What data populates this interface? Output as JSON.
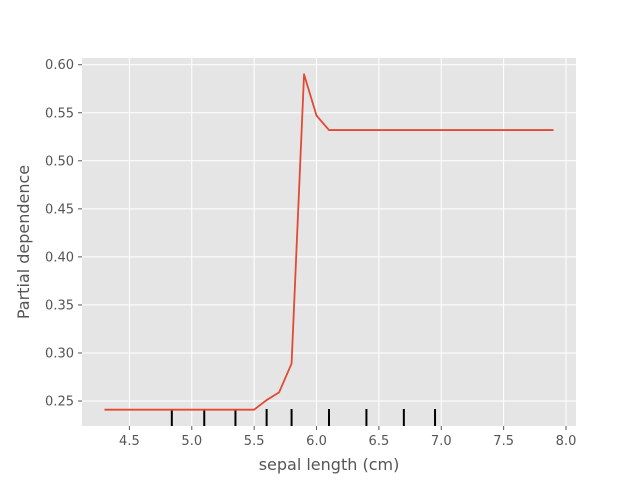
{
  "chart_data": {
    "type": "line",
    "title": "",
    "xlabel": "sepal length (cm)",
    "ylabel": "Partial dependence",
    "xlim": [
      4.12,
      8.08
    ],
    "ylim": [
      0.224,
      0.607
    ],
    "xticks": [
      4.5,
      5.0,
      5.5,
      6.0,
      6.5,
      7.0,
      7.5,
      8.0
    ],
    "xtick_labels": [
      "4.5",
      "5.0",
      "5.5",
      "6.0",
      "6.5",
      "7.0",
      "7.5",
      "8.0"
    ],
    "yticks": [
      0.25,
      0.3,
      0.35,
      0.4,
      0.45,
      0.5,
      0.55,
      0.6
    ],
    "ytick_labels": [
      "0.25",
      "0.30",
      "0.35",
      "0.40",
      "0.45",
      "0.50",
      "0.55",
      "0.60"
    ],
    "grid": true,
    "line_color": "#E24A33",
    "background_color": "#E5E5E5",
    "series": [
      {
        "x": [
          4.3,
          5.5,
          5.6,
          5.7,
          5.8,
          5.9,
          6.0,
          6.1,
          7.9
        ],
        "y": [
          0.241,
          0.241,
          0.251,
          0.259,
          0.289,
          0.59,
          0.547,
          0.532,
          0.532
        ]
      }
    ],
    "rug": [
      4.84,
      5.1,
      5.35,
      5.6,
      5.8,
      6.1,
      6.4,
      6.7,
      6.95
    ]
  }
}
